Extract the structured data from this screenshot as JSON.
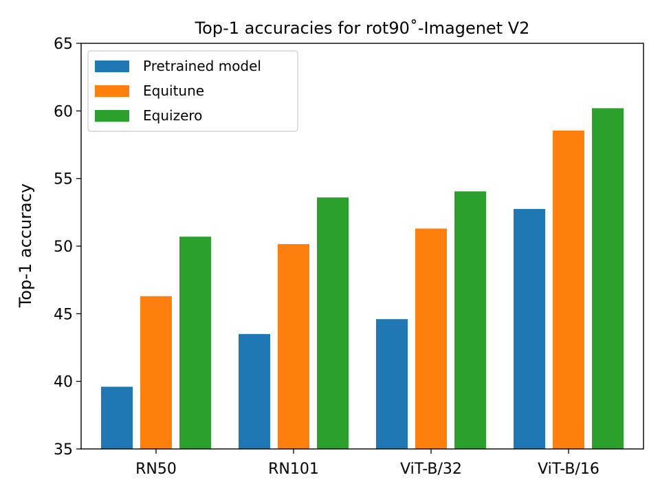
{
  "chart_data": {
    "type": "bar",
    "title": "Top-1 accuracies for rot90˚-Imagenet V2",
    "xlabel": "",
    "ylabel": "Top-1 accuracy",
    "categories": [
      "RN50",
      "RN101",
      "ViT-B/32",
      "ViT-B/16"
    ],
    "series": [
      {
        "name": "Pretrained model",
        "color": "#1f77b4",
        "values": [
          39.6,
          43.5,
          44.6,
          52.75
        ]
      },
      {
        "name": "Equitune",
        "color": "#ff7f0e",
        "values": [
          46.3,
          50.15,
          51.3,
          58.55
        ]
      },
      {
        "name": "Equizero",
        "color": "#2ca02c",
        "values": [
          50.7,
          53.6,
          54.05,
          60.2
        ]
      }
    ],
    "ylim": [
      35,
      65
    ],
    "yticks": [
      35,
      40,
      45,
      50,
      55,
      60,
      65
    ],
    "grid": false,
    "legend_position": "top-left"
  }
}
